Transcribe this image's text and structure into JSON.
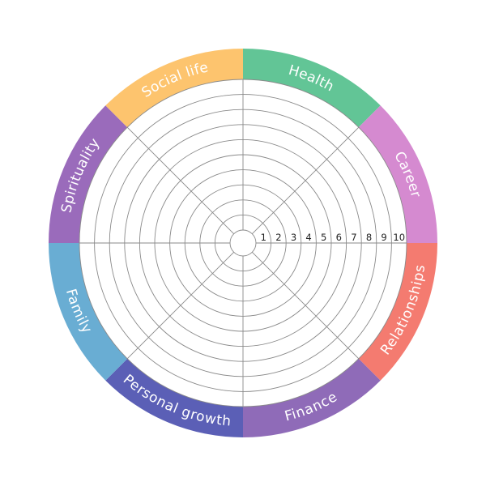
{
  "wheel": {
    "segments": [
      {
        "label": "Health",
        "color": "#62c596"
      },
      {
        "label": "Career",
        "color": "#d58ad0"
      },
      {
        "label": "Relationships",
        "color": "#f47b70"
      },
      {
        "label": "Finance",
        "color": "#8f6bb8"
      },
      {
        "label": "Personal growth",
        "color": "#5b5fb6"
      },
      {
        "label": "Family",
        "color": "#69add3"
      },
      {
        "label": "Spirituality",
        "color": "#9a6bbb"
      },
      {
        "label": "Social life",
        "color": "#fdc46e"
      }
    ],
    "scale": [
      "1",
      "2",
      "3",
      "4",
      "5",
      "6",
      "7",
      "8",
      "9",
      "10"
    ]
  }
}
